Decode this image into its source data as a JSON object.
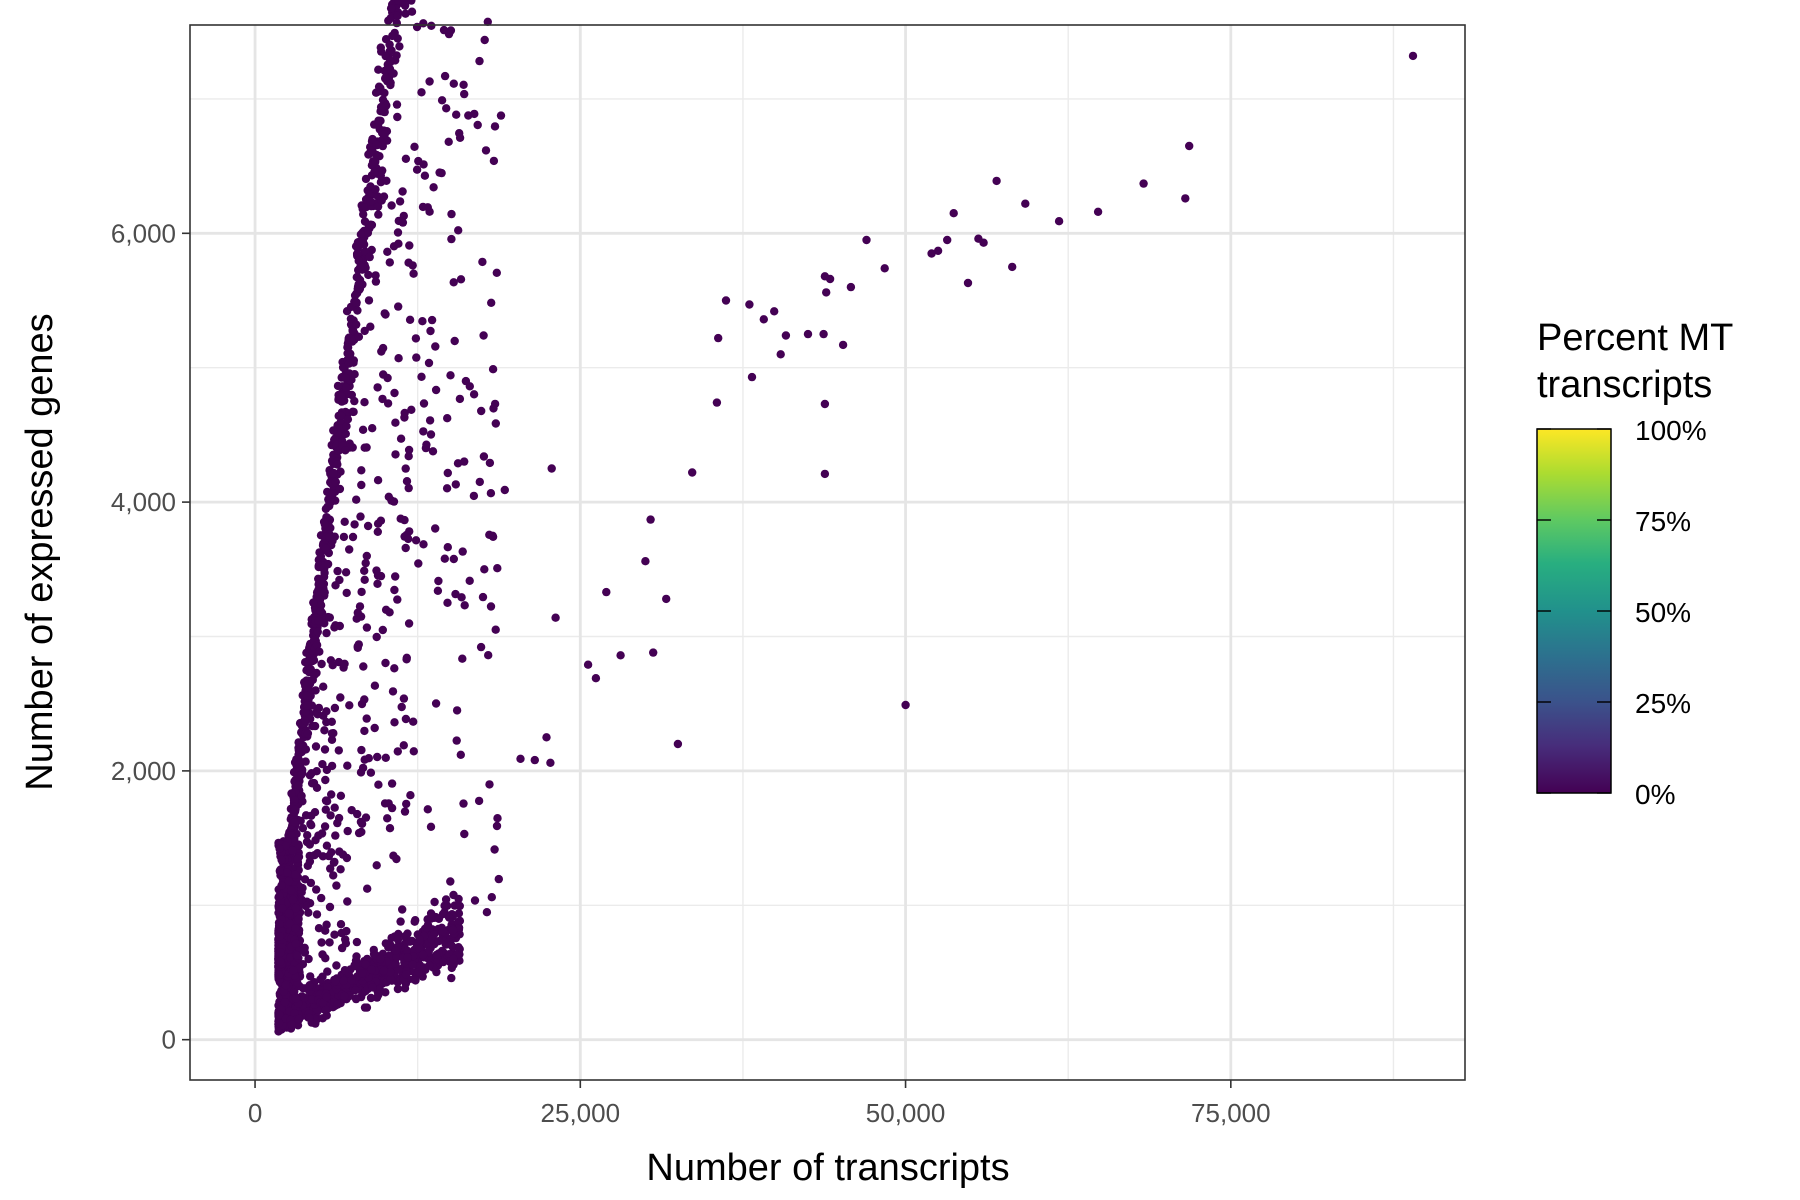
{
  "chart_data": {
    "type": "scatter",
    "title": "",
    "xlabel": "Number of transcripts",
    "ylabel": "Number of expressed genes",
    "xlim": [
      -5000,
      93000
    ],
    "ylim": [
      -300,
      7550
    ],
    "x_ticks": [
      0,
      25000,
      50000,
      75000
    ],
    "x_tick_labels": [
      "0",
      "25,000",
      "50,000",
      "75,000"
    ],
    "y_ticks": [
      0,
      2000,
      4000,
      6000
    ],
    "y_tick_labels": [
      "0",
      "2,000",
      "4,000",
      "6,000"
    ],
    "grid": true,
    "point_color": "#440154",
    "legend": {
      "title_lines": [
        "Percent MT",
        "transcripts"
      ],
      "labels": [
        "100%",
        "75%",
        "50%",
        "25%",
        "0%"
      ],
      "values": [
        100,
        75,
        50,
        25,
        0
      ],
      "colormap": "viridis",
      "colors": [
        "#440154",
        "#3b528b",
        "#21918c",
        "#5ec962",
        "#fde725"
      ],
      "placement": "right"
    },
    "notable_points": [
      {
        "x": 89000,
        "y": 7320
      },
      {
        "x": 71800,
        "y": 6650
      },
      {
        "x": 71500,
        "y": 6260
      },
      {
        "x": 68300,
        "y": 6370
      },
      {
        "x": 64800,
        "y": 6160
      },
      {
        "x": 61800,
        "y": 6090
      },
      {
        "x": 59200,
        "y": 6220
      },
      {
        "x": 57000,
        "y": 6390
      },
      {
        "x": 58200,
        "y": 5750
      },
      {
        "x": 56000,
        "y": 5930
      },
      {
        "x": 55600,
        "y": 5960
      },
      {
        "x": 54800,
        "y": 5630
      },
      {
        "x": 53700,
        "y": 6150
      },
      {
        "x": 53200,
        "y": 5950
      },
      {
        "x": 52500,
        "y": 5870
      },
      {
        "x": 52000,
        "y": 5850
      },
      {
        "x": 48400,
        "y": 5740
      },
      {
        "x": 47000,
        "y": 5950
      },
      {
        "x": 45800,
        "y": 5600
      },
      {
        "x": 45200,
        "y": 5170
      },
      {
        "x": 44200,
        "y": 5660
      },
      {
        "x": 43800,
        "y": 5680
      },
      {
        "x": 43900,
        "y": 5560
      },
      {
        "x": 43700,
        "y": 5250
      },
      {
        "x": 43800,
        "y": 4730
      },
      {
        "x": 43800,
        "y": 4210
      },
      {
        "x": 42500,
        "y": 5250
      },
      {
        "x": 40800,
        "y": 5240
      },
      {
        "x": 40400,
        "y": 5100
      },
      {
        "x": 39900,
        "y": 5420
      },
      {
        "x": 39100,
        "y": 5360
      },
      {
        "x": 38000,
        "y": 5470
      },
      {
        "x": 38200,
        "y": 4930
      },
      {
        "x": 36200,
        "y": 5500
      },
      {
        "x": 35600,
        "y": 5220
      },
      {
        "x": 35500,
        "y": 4740
      },
      {
        "x": 33600,
        "y": 4220
      },
      {
        "x": 50000,
        "y": 2490
      },
      {
        "x": 32500,
        "y": 2200
      },
      {
        "x": 31600,
        "y": 3280
      },
      {
        "x": 30600,
        "y": 2880
      },
      {
        "x": 30000,
        "y": 3560
      },
      {
        "x": 30400,
        "y": 3870
      },
      {
        "x": 28100,
        "y": 2860
      },
      {
        "x": 27000,
        "y": 3330
      },
      {
        "x": 26200,
        "y": 2690
      },
      {
        "x": 25600,
        "y": 2790
      },
      {
        "x": 23100,
        "y": 3140
      },
      {
        "x": 22700,
        "y": 2060
      },
      {
        "x": 22400,
        "y": 2250
      },
      {
        "x": 21500,
        "y": 2080
      },
      {
        "x": 20400,
        "y": 2090
      },
      {
        "x": 18600,
        "y": 1590
      },
      {
        "x": 18200,
        "y": 1060
      },
      {
        "x": 22800,
        "y": 4250
      },
      {
        "x": 19200,
        "y": 4090
      }
    ]
  }
}
